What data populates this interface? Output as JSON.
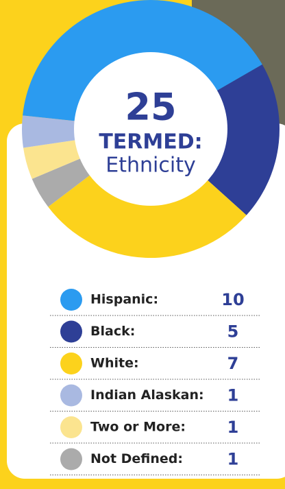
{
  "chart_data": {
    "type": "pie",
    "total": 25,
    "title": "TERMED:",
    "subtitle": "Ethnicity",
    "categories": [
      "Hispanic:",
      "Black:",
      "White:",
      "Indian Alaskan:",
      "Two or More:",
      "Not Defined:"
    ],
    "values": [
      10,
      5,
      7,
      1,
      1,
      1
    ],
    "colors": [
      "#2b9bf0",
      "#2e3f96",
      "#fcd21c",
      "#a9b9e1",
      "#fbe48f",
      "#ababab"
    ]
  }
}
